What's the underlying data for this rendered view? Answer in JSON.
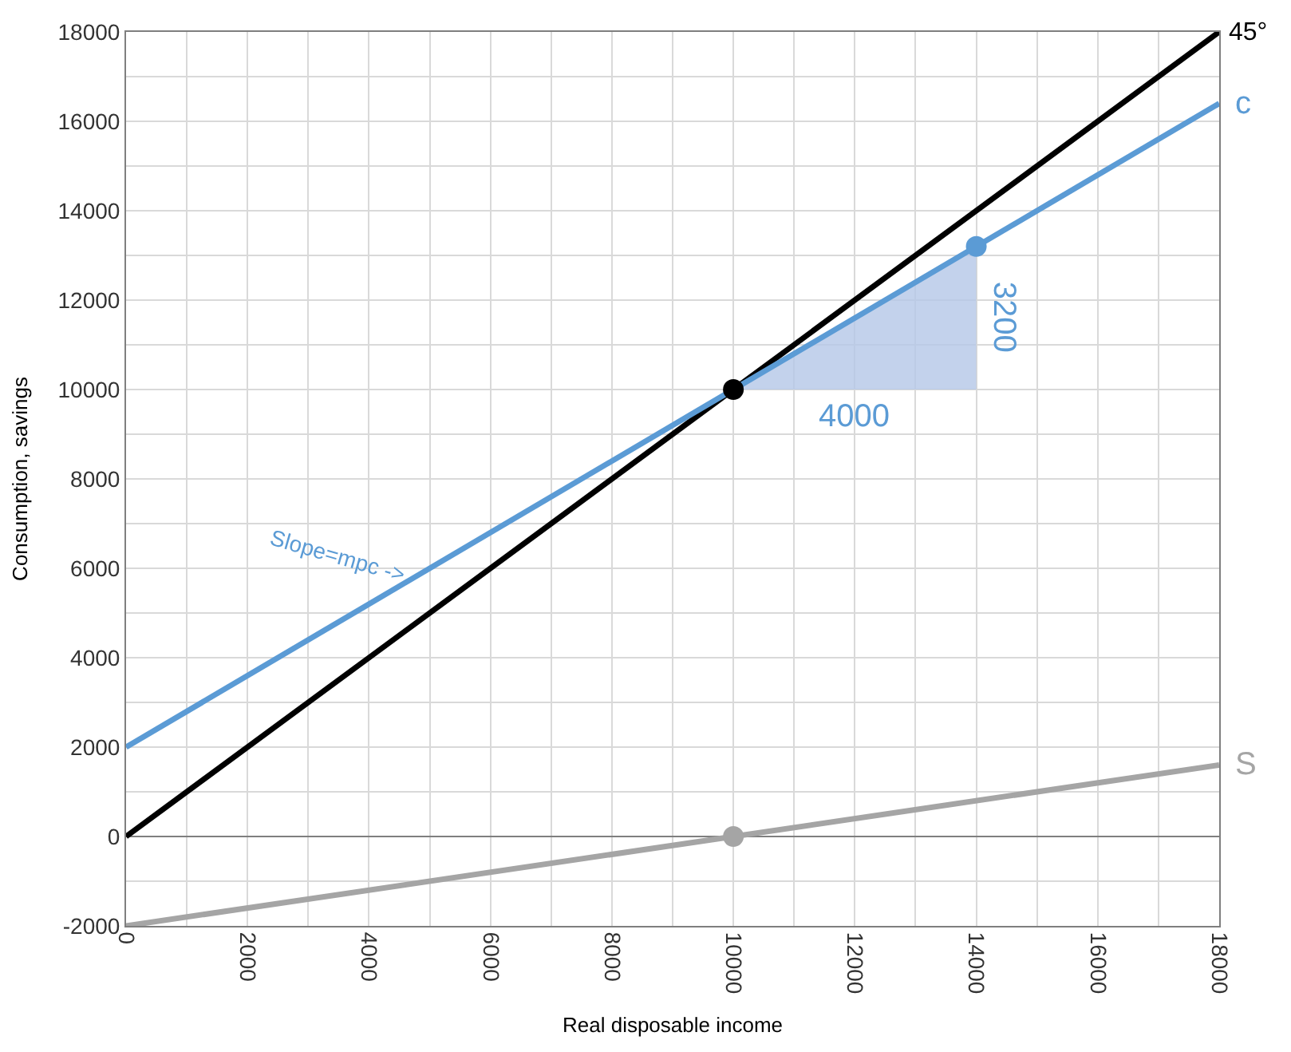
{
  "chart_data": {
    "type": "line",
    "xlabel": "Real disposable income",
    "ylabel": "Consumption, savings",
    "xlim": [
      0,
      18000
    ],
    "ylim": [
      -2000,
      18000
    ],
    "xticks": [
      0,
      2000,
      4000,
      6000,
      8000,
      10000,
      12000,
      14000,
      16000,
      18000
    ],
    "yticks": [
      -2000,
      0,
      2000,
      4000,
      6000,
      8000,
      10000,
      12000,
      14000,
      16000,
      18000
    ],
    "grid": true,
    "series": [
      {
        "type": "area",
        "color": "#b4c7e7",
        "x": [
          10000,
          14000,
          14000
        ],
        "values": [
          10000,
          10000,
          13200
        ]
      },
      {
        "color": "#000000",
        "x": [
          0,
          18000
        ],
        "values": [
          0,
          18000
        ]
      },
      {
        "color": "#5b9bd5",
        "x": [
          0,
          18000
        ],
        "values": [
          2000,
          16400
        ]
      },
      {
        "color": "#a5a5a5",
        "x": [
          0,
          18000
        ],
        "values": [
          -2000,
          1600
        ]
      },
      {
        "type": "scatter",
        "marker": "circle",
        "color": "#000000",
        "x": [
          10000
        ],
        "values": [
          10000
        ]
      },
      {
        "type": "scatter",
        "marker": "circle",
        "color": "#5b9bd5",
        "x": [
          14000
        ],
        "values": [
          13200
        ]
      },
      {
        "type": "scatter",
        "marker": "circle",
        "color": "#a5a5a5",
        "x": [
          10000
        ],
        "values": [
          0
        ]
      }
    ],
    "annotations": [
      {
        "text": "45°",
        "x": 18000,
        "y": 18000
      },
      {
        "text": "c",
        "x": 18000,
        "y": 16400
      },
      {
        "text": "S",
        "x": 18000,
        "y": 1600
      },
      {
        "text": "4000",
        "x": 12000,
        "y": 10000
      },
      {
        "text": "3200",
        "x": 14000,
        "y": 11600
      },
      {
        "text": "Slope=mpc ->",
        "x": 4000,
        "y": 5200
      }
    ]
  }
}
